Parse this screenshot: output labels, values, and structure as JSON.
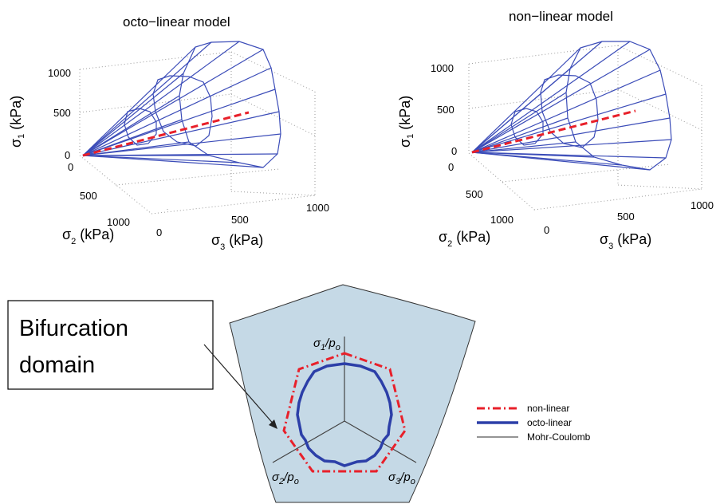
{
  "left_plot": {
    "title": "octo−linear model",
    "ylabel": {
      "sym": "σ",
      "sub": "1",
      "unit": " (kPa)"
    },
    "xlabel": {
      "sym": "σ",
      "sub": "2",
      "unit": " (kPa)"
    },
    "zlabel": {
      "sym": "σ",
      "sub": "3",
      "unit": " (kPa)"
    },
    "y_ticks": [
      "1000",
      "500",
      "0"
    ],
    "x_ticks": [
      "0",
      "500",
      "1000"
    ],
    "z_ticks": [
      "0",
      "500",
      "1000"
    ]
  },
  "right_plot": {
    "title": "non−linear model",
    "ylabel": {
      "sym": "σ",
      "sub": "1",
      "unit": " (kPa)"
    },
    "xlabel": {
      "sym": "σ",
      "sub": "2",
      "unit": " (kPa)"
    },
    "zlabel": {
      "sym": "σ",
      "sub": "3",
      "unit": " (kPa)"
    },
    "y_ticks": [
      "1000",
      "500",
      "0"
    ],
    "x_ticks": [
      "0",
      "500",
      "1000"
    ],
    "z_ticks": [
      "0",
      "500",
      "1000"
    ]
  },
  "callout": {
    "line1": "Bifurcation",
    "line2": "domain"
  },
  "deviatoric": {
    "axis1": {
      "sym": "σ",
      "sub": "1",
      "over": "/p",
      "sub2": "o"
    },
    "axis2": {
      "sym": "σ",
      "sub": "2",
      "over": "/p",
      "sub2": "o"
    },
    "axis3": {
      "sym": "σ",
      "sub": "3",
      "over": "/p",
      "sub2": "o"
    }
  },
  "legend": [
    {
      "label": "non-linear",
      "color": "#e8202a",
      "style": "dash-dot"
    },
    {
      "label": "octo-linear",
      "color": "#2c3fa8",
      "style": "solid"
    },
    {
      "label": "Mohr-Coulomb",
      "color": "#555555",
      "style": "solid"
    }
  ],
  "colors": {
    "mesh": "#3b4cb8",
    "red": "#e8202a",
    "blue": "#2c3fa8",
    "fill": "#c5d9e6"
  }
}
